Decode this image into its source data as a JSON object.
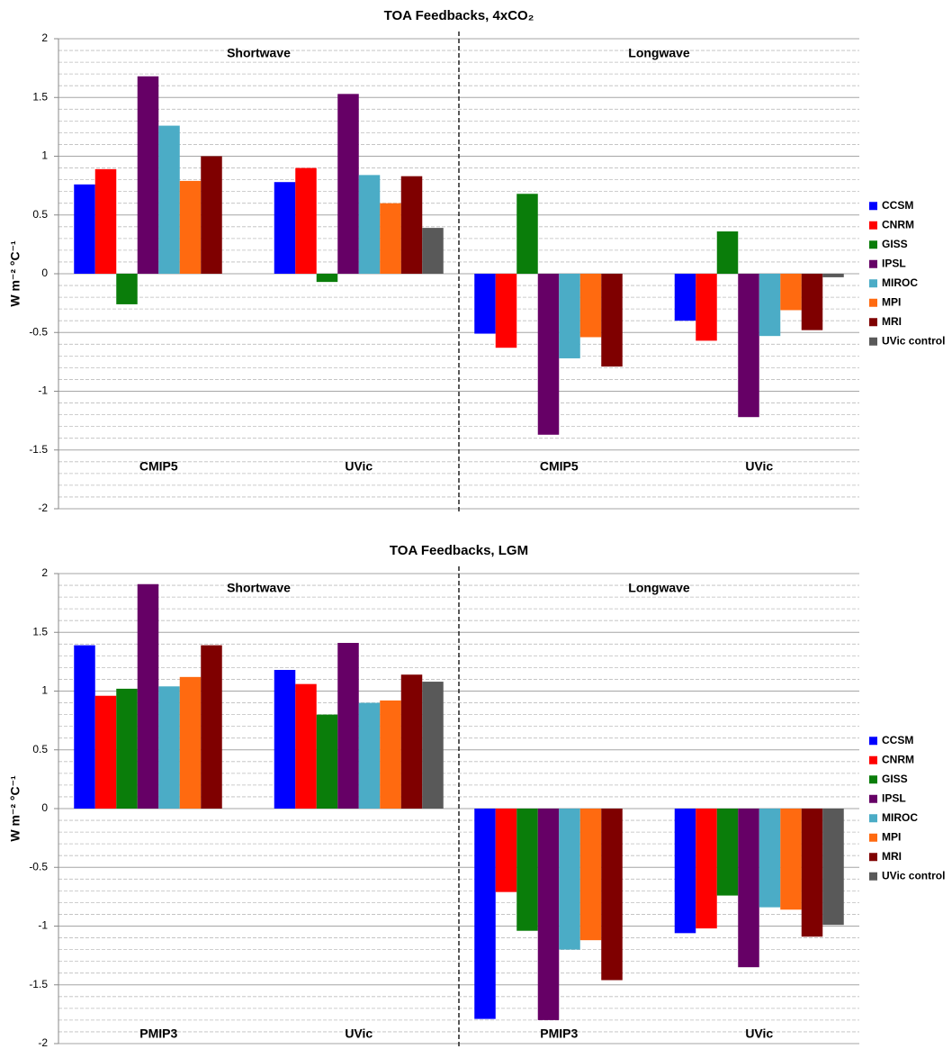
{
  "chart_data": [
    {
      "type": "bar",
      "title": "TOA Feedbacks, 4xCO₂",
      "y_label": "W m⁻² °C⁻¹",
      "categories": [
        "CMIP5",
        "UVic",
        "CMIP5",
        "UVic"
      ],
      "sections": [
        "Shortwave",
        "Longwave"
      ],
      "ylim": [
        -2,
        2
      ],
      "yticks": [
        -2,
        -1.5,
        -1,
        -0.5,
        0,
        0.5,
        1,
        1.5,
        2
      ],
      "grid": true,
      "minor_grid": true,
      "minor_divisions": 5,
      "legend": "right",
      "series": [
        {
          "name": "CCSM",
          "color": "#0000ff",
          "values": [
            0.76,
            0.78,
            -0.51,
            -0.4
          ]
        },
        {
          "name": "CNRM",
          "color": "#ff0000",
          "values": [
            0.89,
            0.9,
            -0.63,
            -0.57
          ]
        },
        {
          "name": "GISS",
          "color": "#0a7d0a",
          "values": [
            -0.26,
            -0.07,
            0.68,
            0.36
          ]
        },
        {
          "name": "IPSL",
          "color": "#660066",
          "values": [
            1.68,
            1.53,
            -1.37,
            -1.22
          ]
        },
        {
          "name": "MIROC",
          "color": "#4bacc6",
          "values": [
            1.26,
            0.84,
            -0.72,
            -0.53
          ]
        },
        {
          "name": "MPI",
          "color": "#ff6a10",
          "values": [
            0.79,
            0.6,
            -0.54,
            -0.31
          ]
        },
        {
          "name": "MRI",
          "color": "#7f0000",
          "values": [
            1.0,
            0.83,
            -0.79,
            -0.48
          ]
        },
        {
          "name": "UVic control",
          "color": "#595959",
          "values": [
            null,
            0.39,
            null,
            -0.03
          ]
        }
      ]
    },
    {
      "type": "bar",
      "title": "TOA Feedbacks, LGM",
      "y_label": "W m⁻² °C⁻¹",
      "categories": [
        "PMIP3",
        "UVic",
        "PMIP3",
        "UVic"
      ],
      "sections": [
        "Shortwave",
        "Longwave"
      ],
      "ylim": [
        -2,
        2
      ],
      "yticks": [
        -2,
        -1.5,
        -1,
        -0.5,
        0,
        0.5,
        1,
        1.5,
        2
      ],
      "grid": true,
      "minor_grid": true,
      "minor_divisions": 5,
      "legend": "right",
      "series": [
        {
          "name": "CCSM",
          "color": "#0000ff",
          "values": [
            1.39,
            1.18,
            -1.79,
            -1.06
          ]
        },
        {
          "name": "CNRM",
          "color": "#ff0000",
          "values": [
            0.96,
            1.06,
            -0.71,
            -1.02
          ]
        },
        {
          "name": "GISS",
          "color": "#0a7d0a",
          "values": [
            1.02,
            0.8,
            -1.04,
            -0.74
          ]
        },
        {
          "name": "IPSL",
          "color": "#660066",
          "values": [
            1.91,
            1.41,
            -1.8,
            -1.35
          ]
        },
        {
          "name": "MIROC",
          "color": "#4bacc6",
          "values": [
            1.04,
            0.9,
            -1.2,
            -0.84
          ]
        },
        {
          "name": "MPI",
          "color": "#ff6a10",
          "values": [
            1.12,
            0.92,
            -1.12,
            -0.86
          ]
        },
        {
          "name": "MRI",
          "color": "#7f0000",
          "values": [
            1.39,
            1.14,
            -1.46,
            -1.09
          ]
        },
        {
          "name": "UVic control",
          "color": "#595959",
          "values": [
            null,
            1.08,
            null,
            -0.99
          ]
        }
      ]
    }
  ]
}
